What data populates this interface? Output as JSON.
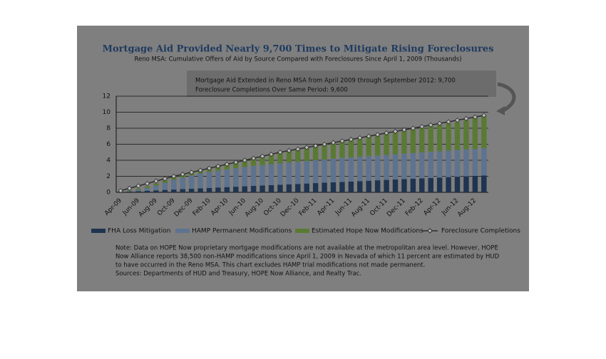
{
  "chart_data": {
    "type": "stacked_bar_line",
    "title": "Mortgage Aid Provided Nearly 9,700 Times to Mitigate Rising Foreclosures",
    "subtitle": "Reno MSA: Cumulative Offers of Aid by Source Compared with Foreclosures Since April 1, 2009  (Thousands)",
    "annotations": [
      "Mortgage Aid Extended in Reno MSA from April 2009 through September 2012: 9,700",
      "Foreclosure Completions Over Same Period: 9,600"
    ],
    "note": [
      "Note: Data on HOPE Now proprietary mortgage modifications are not available at the metropolitan area level. However, HOPE",
      "Now Alliance reports 38,500 non-HAMP modifications since April 1, 2009 in Nevada of which 11 percent are estimated by HUD",
      "to have occurred in the Reno MSA. This chart excludes HAMP trial modifications not made permanent.",
      "Sources: Departments of HUD and Treasury, HOPE Now Alliance, and Realty Trac."
    ],
    "categories": [
      "Apr-09",
      null,
      "Jun-09",
      null,
      "Aug-09",
      null,
      "Oct-09",
      null,
      "Dec-09",
      null,
      "Feb-10",
      null,
      "Apr-10",
      null,
      "Jun-10",
      null,
      "Aug-10",
      null,
      "Oct-10",
      null,
      "Dec-10",
      null,
      "Feb-11",
      null,
      "Apr-11",
      null,
      "Jun-11",
      null,
      "Aug-11",
      null,
      "Oct-11",
      null,
      "Dec-11",
      null,
      "Feb-12",
      null,
      "Apr-12",
      null,
      "Jun-12",
      null,
      "Aug-12",
      null
    ],
    "series": [
      {
        "name": "FHA Loss Mitigation",
        "color": "#1e3450",
        "kind": "bar",
        "values": [
          0.05,
          0.1,
          0.15,
          0.2,
          0.25,
          0.3,
          0.35,
          0.4,
          0.45,
          0.5,
          0.55,
          0.6,
          0.65,
          0.7,
          0.75,
          0.8,
          0.85,
          0.9,
          0.95,
          1.0,
          1.05,
          1.1,
          1.15,
          1.2,
          1.25,
          1.3,
          1.35,
          1.4,
          1.45,
          1.5,
          1.55,
          1.6,
          1.65,
          1.7,
          1.75,
          1.8,
          1.85,
          1.9,
          1.95,
          2.0,
          2.05,
          2.1
        ]
      },
      {
        "name": "HAMP Permanent Modifications",
        "color": "#5d7390",
        "kind": "bar",
        "values": [
          0,
          0.05,
          0.15,
          0.35,
          0.6,
          0.9,
          1.2,
          1.45,
          1.65,
          1.85,
          2.0,
          2.1,
          2.2,
          2.3,
          2.4,
          2.5,
          2.55,
          2.6,
          2.65,
          2.7,
          2.75,
          2.8,
          2.85,
          2.9,
          2.95,
          3.0,
          3.02,
          3.05,
          3.08,
          3.1,
          3.12,
          3.15,
          3.18,
          3.2,
          3.22,
          3.25,
          3.27,
          3.3,
          3.32,
          3.35,
          3.37,
          3.4
        ]
      },
      {
        "name": "Estimated Hope Now Modifications",
        "color": "#5a7a34",
        "kind": "bar",
        "values": [
          0.05,
          0.1,
          0.15,
          0.2,
          0.25,
          0.3,
          0.35,
          0.4,
          0.45,
          0.5,
          0.6,
          0.7,
          0.8,
          0.9,
          1.0,
          1.1,
          1.2,
          1.35,
          1.5,
          1.6,
          1.7,
          1.8,
          1.9,
          2.0,
          2.1,
          2.2,
          2.3,
          2.4,
          2.5,
          2.6,
          2.7,
          2.8,
          2.9,
          3.0,
          3.1,
          3.2,
          3.3,
          3.4,
          3.5,
          3.7,
          3.9,
          4.1
        ]
      },
      {
        "name": "Foreclosure Completions",
        "color": "#2e2e2e",
        "kind": "line",
        "values": [
          0.2,
          0.5,
          0.8,
          1.1,
          1.4,
          1.7,
          2.0,
          2.25,
          2.5,
          2.75,
          3.0,
          3.25,
          3.5,
          3.75,
          4.0,
          4.25,
          4.5,
          4.75,
          5.0,
          5.2,
          5.4,
          5.6,
          5.8,
          6.0,
          6.2,
          6.4,
          6.6,
          6.8,
          7.0,
          7.2,
          7.4,
          7.6,
          7.8,
          8.0,
          8.2,
          8.4,
          8.6,
          8.8,
          9.0,
          9.2,
          9.4,
          9.6
        ]
      }
    ],
    "ylim": [
      0,
      12
    ],
    "yticks": [
      0,
      2,
      4,
      6,
      8,
      10,
      12
    ],
    "grid": true,
    "legend": "bottom"
  }
}
